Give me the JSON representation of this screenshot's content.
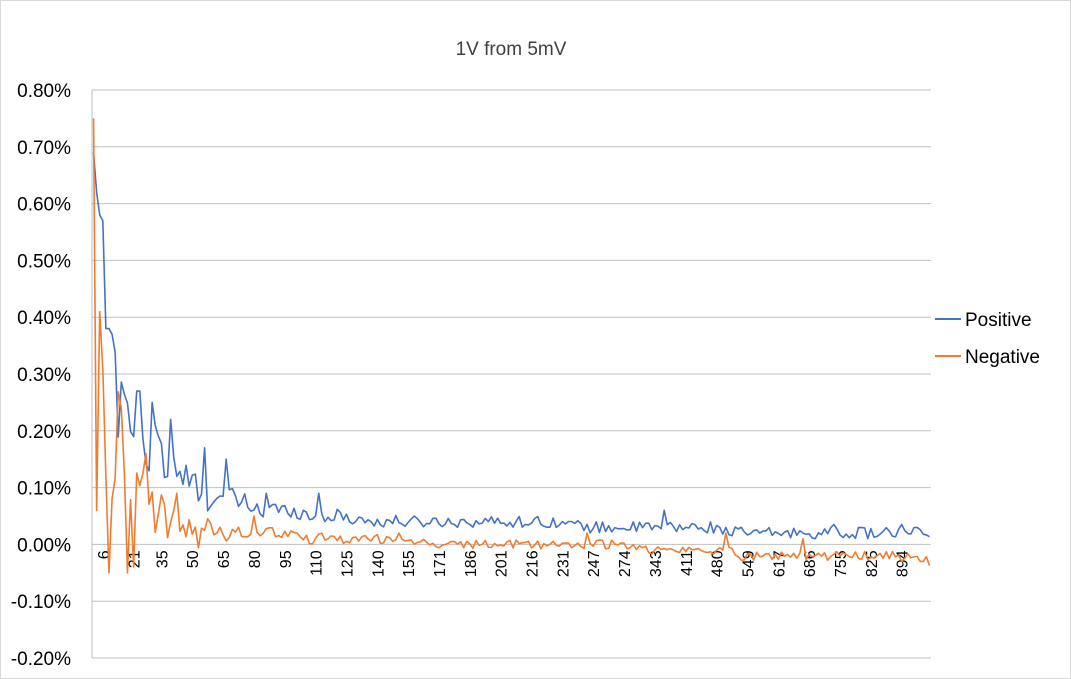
{
  "chart_data": {
    "type": "line",
    "title": "1V from 5mV",
    "xlabel": "",
    "ylabel": "",
    "ylim": [
      -0.002,
      0.008
    ],
    "y_ticks": [
      -0.002,
      -0.001,
      0.0,
      0.001,
      0.002,
      0.003,
      0.004,
      0.005,
      0.006,
      0.007,
      0.008
    ],
    "y_tick_labels": [
      "-0.20%",
      "-0.10%",
      "0.00%",
      "0.10%",
      "0.20%",
      "0.30%",
      "0.40%",
      "0.50%",
      "0.60%",
      "0.70%",
      "0.80%"
    ],
    "x_tick_labels": [
      "6",
      "21",
      "35",
      "50",
      "65",
      "80",
      "95",
      "110",
      "125",
      "140",
      "155",
      "171",
      "186",
      "201",
      "216",
      "231",
      "247",
      "274",
      "343",
      "411",
      "480",
      "549",
      "617",
      "686",
      "755",
      "825",
      "894"
    ],
    "x_tick_positions": [
      3,
      13,
      22,
      32,
      42,
      52,
      62,
      72,
      82,
      92,
      102,
      112,
      122,
      132,
      142,
      152,
      162,
      172,
      182,
      192,
      202,
      212,
      222,
      232,
      242,
      252,
      262
    ],
    "num_points": 272,
    "grid": true,
    "legend_position": "right",
    "colors": {
      "Positive": "#4472c4",
      "Negative": "#ed7d31",
      "grid": "#bfbfbf",
      "axis": "#bfbfbf"
    },
    "series": [
      {
        "name": "Positive",
        "anchors": [
          [
            0,
            0.0069
          ],
          [
            1,
            0.0062
          ],
          [
            2,
            0.0058
          ],
          [
            3,
            0.0057
          ],
          [
            4,
            0.0038
          ],
          [
            5,
            0.0038
          ],
          [
            6,
            0.0037
          ],
          [
            8,
            0.0022
          ],
          [
            10,
            0.0027
          ],
          [
            12,
            0.0018
          ],
          [
            14,
            0.0027
          ],
          [
            16,
            0.0019
          ],
          [
            18,
            0.0013
          ],
          [
            20,
            0.0022
          ],
          [
            22,
            0.0016
          ],
          [
            24,
            0.0012
          ],
          [
            26,
            0.0013
          ],
          [
            28,
            0.0011
          ],
          [
            30,
            0.0012
          ],
          [
            33,
            0.001
          ],
          [
            36,
            0.0009
          ],
          [
            40,
            0.0008
          ],
          [
            45,
            0.0008
          ],
          [
            50,
            0.0007
          ],
          [
            55,
            0.0006
          ],
          [
            60,
            0.0006
          ],
          [
            65,
            0.0006
          ],
          [
            70,
            0.0005
          ],
          [
            80,
            0.0005
          ],
          [
            90,
            0.0004
          ],
          [
            100,
            0.0004
          ],
          [
            110,
            0.0004
          ],
          [
            120,
            0.0004
          ],
          [
            130,
            0.0004
          ],
          [
            140,
            0.0004
          ],
          [
            150,
            0.0004
          ],
          [
            160,
            0.0003
          ],
          [
            170,
            0.0003
          ],
          [
            180,
            0.0003
          ],
          [
            190,
            0.0003
          ],
          [
            200,
            0.0003
          ],
          [
            210,
            0.0002
          ],
          [
            220,
            0.0002
          ],
          [
            230,
            0.0002
          ],
          [
            240,
            0.0002
          ],
          [
            250,
            0.0002
          ],
          [
            260,
            0.0002
          ],
          [
            271,
            0.0002
          ]
        ],
        "noise_amplitude": [
          0.0006,
          0.0004,
          0.0003,
          0.0002,
          0.00012,
          0.0001,
          0.0001
        ],
        "spikes": [
          [
            15,
            0.0027
          ],
          [
            19,
            0.0025
          ],
          [
            25,
            0.0022
          ],
          [
            36,
            0.0017
          ],
          [
            43,
            0.0015
          ],
          [
            56,
            0.0009
          ],
          [
            73,
            0.0009
          ],
          [
            185,
            0.0006
          ],
          [
            240,
            0.00035
          ],
          [
            262,
            0.00035
          ]
        ]
      },
      {
        "name": "Negative",
        "anchors": [
          [
            0,
            0.0075
          ],
          [
            1,
            0.0006
          ],
          [
            2,
            0.0041
          ],
          [
            3,
            0.0031
          ],
          [
            4,
            0.0012
          ],
          [
            5,
            -0.0005
          ],
          [
            6,
            0.0008
          ],
          [
            8,
            0.0024
          ],
          [
            10,
            0.0014
          ],
          [
            12,
            0.0004
          ],
          [
            14,
            0.0009
          ],
          [
            16,
            0.0011
          ],
          [
            18,
            0.0008
          ],
          [
            20,
            0.0004
          ],
          [
            22,
            0.0005
          ],
          [
            24,
            0.0003
          ],
          [
            26,
            0.0004
          ],
          [
            28,
            0.0003
          ],
          [
            30,
            0.0002
          ],
          [
            35,
            0.0002
          ],
          [
            40,
            0.0002
          ],
          [
            45,
            0.0002
          ],
          [
            50,
            0.0002
          ],
          [
            55,
            0.0002
          ],
          [
            60,
            0.0002
          ],
          [
            70,
            0.0001
          ],
          [
            80,
            0.0001
          ],
          [
            90,
            0.0001
          ],
          [
            100,
            0.0001
          ],
          [
            110,
            0.0
          ],
          [
            120,
            0.0
          ],
          [
            130,
            0.0
          ],
          [
            140,
            0.0
          ],
          [
            150,
            0.0
          ],
          [
            160,
            0.0
          ],
          [
            170,
            0.0
          ],
          [
            180,
            -0.0001
          ],
          [
            190,
            -0.0001
          ],
          [
            200,
            -0.0001
          ],
          [
            205,
            -0.0001
          ],
          [
            210,
            -0.0002
          ],
          [
            220,
            -0.0002
          ],
          [
            230,
            -0.0002
          ],
          [
            240,
            -0.0002
          ],
          [
            250,
            -0.0002
          ],
          [
            260,
            -0.0002
          ],
          [
            271,
            -0.0003
          ]
        ],
        "noise_amplitude": [
          0.0006,
          0.0004,
          0.0003,
          0.00015,
          0.0001,
          8e-05,
          8e-05
        ],
        "spikes": [
          [
            9,
            0.0024
          ],
          [
            11,
            -0.0005
          ],
          [
            13,
            -0.0004
          ],
          [
            17,
            0.0016
          ],
          [
            23,
            0.0007
          ],
          [
            27,
            0.0009
          ],
          [
            41,
            0.0003
          ],
          [
            52,
            0.0005
          ],
          [
            66,
            0.0002
          ],
          [
            99,
            0.0002
          ],
          [
            160,
            0.0002
          ],
          [
            205,
            0.0002
          ],
          [
            230,
            0.0001
          ],
          [
            262,
            -0.0003
          ]
        ]
      }
    ]
  }
}
